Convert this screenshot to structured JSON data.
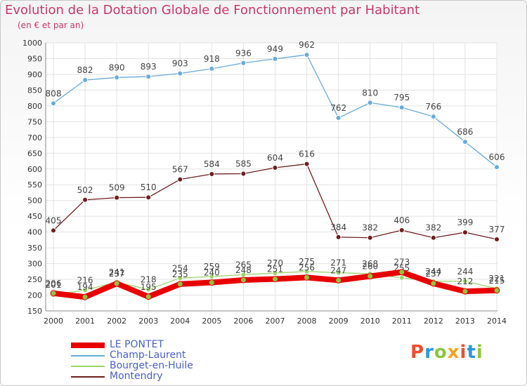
{
  "title": "Evolution de la Dotation Globale de Fonctionnement par Habitant",
  "subtitle": "(en € et par an)",
  "logo": {
    "text": "Proxiti",
    "colors": [
      "#e8502a",
      "#2a9ad8",
      "#8cc63f",
      "#f2a51c",
      "#e8502a",
      "#2a9ad8",
      "#8cc63f"
    ]
  },
  "chart_data": {
    "type": "line",
    "x": [
      2000,
      2001,
      2002,
      2003,
      2004,
      2005,
      2006,
      2007,
      2008,
      2009,
      2010,
      2011,
      2012,
      2013,
      2014
    ],
    "ylim": [
      150,
      1000
    ],
    "yticks": [
      150,
      200,
      250,
      300,
      350,
      400,
      450,
      500,
      550,
      600,
      650,
      700,
      750,
      800,
      850,
      900,
      950,
      1000
    ],
    "grid": true,
    "legend_position": "bottom-left",
    "series": [
      {
        "name": "LE PONTET",
        "color": "#e80000",
        "values": [
          206,
          194,
          237,
          195,
          235,
          240,
          248,
          251,
          256,
          247,
          260,
          273,
          237,
          212,
          215
        ]
      },
      {
        "name": "Champ-Laurent",
        "color": "#6aaad8",
        "values": [
          808,
          882,
          890,
          893,
          903,
          918,
          936,
          949,
          962,
          762,
          810,
          795,
          766,
          686,
          606
        ]
      },
      {
        "name": "Bourget-en-Huile",
        "color": "#9ed46a",
        "values": [
          201,
          216,
          241,
          218,
          254,
          259,
          265,
          270,
          275,
          271,
          268,
          255,
          244,
          244,
          221
        ]
      },
      {
        "name": "Montendry",
        "color": "#6e1e1e",
        "values": [
          405,
          502,
          509,
          510,
          567,
          584,
          585,
          604,
          616,
          384,
          382,
          406,
          382,
          399,
          377
        ]
      }
    ]
  }
}
